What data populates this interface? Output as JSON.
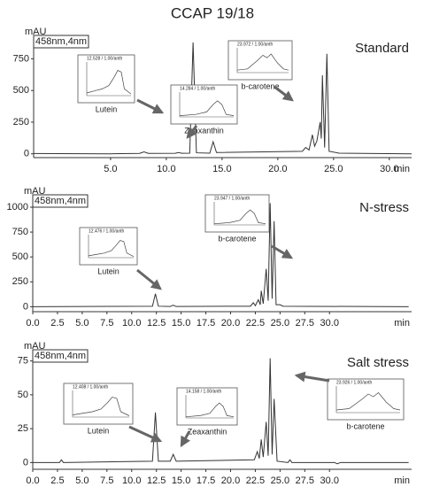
{
  "chart_data": [
    {
      "type": "line",
      "title": "CCAP 19/18",
      "detector": "458nm,4nm",
      "ylabel": "mAU",
      "xlabel": "min",
      "x": [
        -1.9,
        5,
        7.6,
        8,
        8.4,
        10.8,
        11.1,
        11.4,
        12.1,
        12.4,
        12.7,
        13.9,
        14.2,
        14.5,
        22.2,
        22.5,
        22.8,
        23.1,
        23.3,
        23.5,
        23.8,
        23.9,
        24.0,
        24.2,
        24.4,
        24.6,
        25.5,
        32
      ],
      "series": [
        {
          "name": "Standard",
          "color": "#333333",
          "values": [
            2,
            0,
            3,
            15,
            3,
            4,
            10,
            4,
            5,
            880,
            8,
            5,
            95,
            10,
            20,
            50,
            30,
            150,
            60,
            100,
            250,
            120,
            620,
            50,
            790,
            20,
            5,
            0
          ]
        }
      ],
      "xlim": [
        -1.9,
        32
      ],
      "ylim": [
        -30,
        900
      ],
      "xticks": [
        {
          "value": 5,
          "label": "5.0"
        },
        {
          "value": 10,
          "label": "10.0"
        },
        {
          "value": 15,
          "label": "15.0"
        },
        {
          "value": 20,
          "label": "20.0"
        },
        {
          "value": 25,
          "label": "25.0"
        },
        {
          "value": 30,
          "label": "30.0"
        }
      ],
      "yticks": [
        0,
        250,
        500,
        750
      ],
      "insets": [
        {
          "header": "12.528 / 1.00/anth",
          "label": "Lutein"
        },
        {
          "header": "14.284 / 1.00/anth",
          "label": "Zeaxanthin"
        },
        {
          "header": "23.972 / 1.00/anth",
          "label": "b-carotene"
        }
      ]
    },
    {
      "type": "line",
      "detector": "458nm,4nm",
      "ylabel": "mAU",
      "xlabel": "min",
      "x": [
        0,
        12.1,
        12.4,
        12.7,
        13.9,
        14.2,
        14.5,
        22.0,
        22.3,
        22.5,
        22.8,
        23.0,
        23.1,
        23.3,
        23.6,
        23.8,
        24.0,
        24.2,
        24.4,
        24.6,
        25.0,
        25.3,
        38
      ],
      "series": [
        {
          "name": "N-stress",
          "color": "#333333",
          "values": [
            0,
            5,
            130,
            5,
            2,
            15,
            2,
            5,
            40,
            10,
            70,
            20,
            160,
            30,
            380,
            60,
            1040,
            80,
            860,
            20,
            20,
            5,
            0
          ]
        }
      ],
      "xlim": [
        0,
        38.3
      ],
      "ylim": [
        -50,
        1080
      ],
      "xticks": [
        {
          "value": 0,
          "label": "0.0"
        },
        {
          "value": 2.5,
          "label": "2.5"
        },
        {
          "value": 5,
          "label": "5.0"
        },
        {
          "value": 7.5,
          "label": "7.5"
        },
        {
          "value": 10,
          "label": "10.0"
        },
        {
          "value": 12.5,
          "label": "12.5"
        },
        {
          "value": 15,
          "label": "15.0"
        },
        {
          "value": 17.5,
          "label": "17.5"
        },
        {
          "value": 20,
          "label": "20.0"
        },
        {
          "value": 22.5,
          "label": "22.5"
        },
        {
          "value": 25,
          "label": "25.0"
        },
        {
          "value": 27.5,
          "label": "27.5"
        },
        {
          "value": 30,
          "label": "30.0"
        }
      ],
      "yticks": [
        0,
        250,
        500,
        750,
        1000
      ],
      "insets": [
        {
          "header": "12.476 / 1.00/anth",
          "label": "Lutein"
        },
        {
          "header": "23.947 / 1.00/anth",
          "label": "b-carotene"
        }
      ]
    },
    {
      "type": "line",
      "detector": "458nm,4nm",
      "ylabel": "mAU",
      "xlabel": "min",
      "x": [
        0,
        2.7,
        2.9,
        3.1,
        12.1,
        12.4,
        12.7,
        13.9,
        14.2,
        14.5,
        22.4,
        22.7,
        22.9,
        23.1,
        23.3,
        23.6,
        23.8,
        24.0,
        24.2,
        24.4,
        24.7,
        25.8,
        26.0,
        26.2,
        30.5,
        30.8,
        31.1,
        38
      ],
      "series": [
        {
          "name": "Salt stress",
          "color": "#333333",
          "values": [
            0,
            0,
            2,
            0,
            1,
            37,
            1,
            1,
            6,
            1,
            2,
            8,
            3,
            17,
            4,
            30,
            5,
            77,
            6,
            47,
            1,
            0,
            2,
            0,
            0,
            -1,
            0,
            0
          ]
        }
      ],
      "xlim": [
        0,
        38.3
      ],
      "ylim": [
        -5,
        80
      ],
      "xticks": [
        {
          "value": 0,
          "label": "0.0"
        },
        {
          "value": 2.5,
          "label": "2.5"
        },
        {
          "value": 5,
          "label": "5.0"
        },
        {
          "value": 7.5,
          "label": "7.5"
        },
        {
          "value": 10,
          "label": "10.0"
        },
        {
          "value": 12.5,
          "label": "12.5"
        },
        {
          "value": 15,
          "label": "15.0"
        },
        {
          "value": 17.5,
          "label": "17.5"
        },
        {
          "value": 20,
          "label": "20.0"
        },
        {
          "value": 22.5,
          "label": "22.5"
        },
        {
          "value": 25,
          "label": "25.0"
        },
        {
          "value": 27.5,
          "label": "27.5"
        },
        {
          "value": 30,
          "label": "30.0"
        }
      ],
      "yticks": [
        0,
        25,
        50,
        75
      ],
      "insets": [
        {
          "header": "12.408 / 1.00/anth",
          "label": "Lutein"
        },
        {
          "header": "14.158 / 1.00/anth",
          "label": "Zeaxanthin"
        },
        {
          "header": "23.926 / 1.00/anth",
          "label": "b-carotene"
        }
      ]
    }
  ]
}
